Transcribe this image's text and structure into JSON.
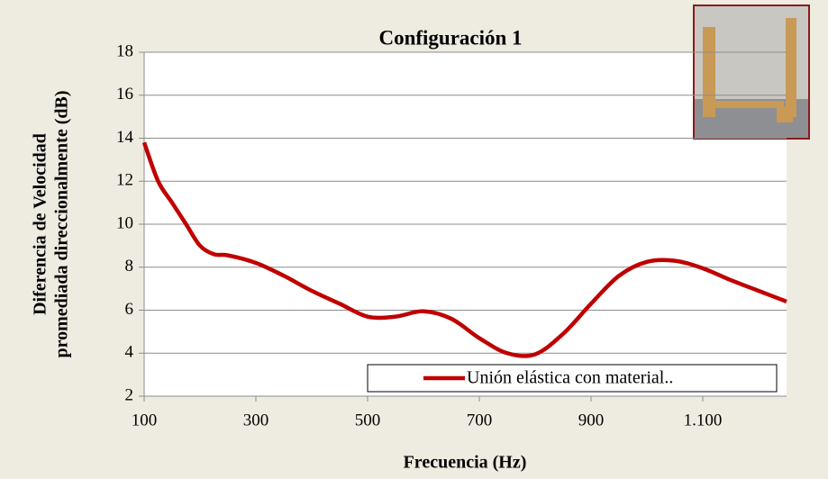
{
  "chart_data": {
    "type": "line",
    "title": "Configuración 1",
    "xlabel": "Frecuencia (Hz)",
    "ylabel": [
      "Diferencia de Velocidad",
      "promediada direccionalmente (dB)"
    ],
    "x": [
      100,
      125,
      150,
      175,
      200,
      225,
      250,
      300,
      350,
      400,
      450,
      500,
      550,
      600,
      650,
      700,
      750,
      800,
      850,
      900,
      950,
      1000,
      1050,
      1100,
      1150,
      1200,
      1250
    ],
    "series": [
      {
        "name": "Unión elástica con material..",
        "color": "#c00000",
        "values": [
          13.8,
          12,
          11,
          10,
          9,
          8.6,
          8.55,
          8.2,
          7.6,
          6.9,
          6.3,
          5.7,
          5.7,
          5.95,
          5.6,
          4.7,
          4.0,
          3.95,
          4.9,
          6.3,
          7.6,
          8.25,
          8.3,
          7.95,
          7.4,
          6.9,
          6.4
        ]
      }
    ],
    "xlim": [
      100,
      1250
    ],
    "xticks": [
      100,
      300,
      500,
      700,
      900,
      {
        "value": 1100,
        "label": "1.100"
      }
    ],
    "ylim": [
      2,
      18
    ],
    "yticks": [
      2,
      4,
      6,
      8,
      10,
      12,
      14,
      16,
      18
    ],
    "grid": true,
    "legend": "lower right"
  }
}
